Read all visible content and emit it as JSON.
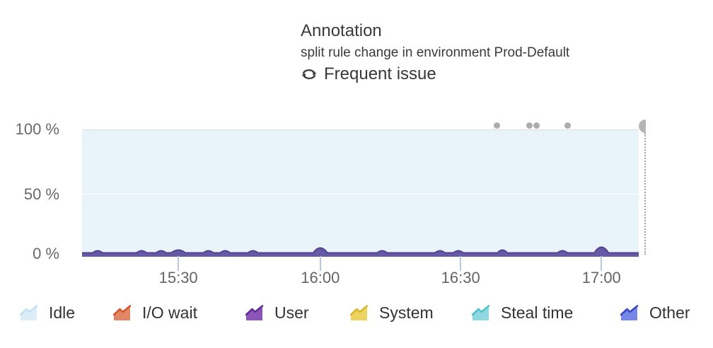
{
  "tooltip": {
    "title": "Annotation",
    "description": "split rule change in environment Prod-Default",
    "frequent_issue": "Frequent issue",
    "icon": "cycle-arrows-icon",
    "text_color": "#3a3a3a"
  },
  "axes": {
    "y_labels": [
      "100 %",
      "50 %",
      "0 %"
    ],
    "x_labels": [
      "15:30",
      "16:00",
      "16:30",
      "17:00"
    ]
  },
  "legend": [
    {
      "label": "Idle",
      "fill": "#dcedf8",
      "stroke": "#c3e0f2"
    },
    {
      "label": "I/O wait",
      "fill": "#e28763",
      "stroke": "#d4562c"
    },
    {
      "label": "User",
      "fill": "#8d55b8",
      "stroke": "#5e2c92"
    },
    {
      "label": "System",
      "fill": "#edd35f",
      "stroke": "#ddb52f"
    },
    {
      "label": "Steal time",
      "fill": "#8fd7e1",
      "stroke": "#52bfd1"
    },
    {
      "label": "Other",
      "fill": "#7787e8",
      "stroke": "#3749c4"
    }
  ],
  "chart_data": {
    "type": "area",
    "stacked": true,
    "title": "",
    "xlabel": "",
    "ylabel": "",
    "ylim": [
      0,
      100
    ],
    "grid": "horizontal-50-only",
    "legend_position": "bottom",
    "x_ticks": [
      {
        "label": "15:30",
        "f": 0.173
      },
      {
        "label": "16:00",
        "f": 0.428
      },
      {
        "label": "16:30",
        "f": 0.68
      },
      {
        "label": "17:00",
        "f": 0.933
      }
    ],
    "y_tick_labels": [
      "100 %",
      "50 %",
      "0 %"
    ],
    "categories": [
      "15:30",
      "16:00",
      "16:30",
      "17:00"
    ],
    "series": [
      {
        "name": "Idle",
        "values": [
          98.0,
          97.0,
          98.0,
          97.0
        ]
      },
      {
        "name": "I/O wait",
        "values": [
          0.2,
          0.3,
          0.2,
          0.3
        ]
      },
      {
        "name": "User",
        "values": [
          0.8,
          0.9,
          0.8,
          0.9
        ]
      },
      {
        "name": "System",
        "values": [
          0.4,
          0.5,
          0.4,
          0.5
        ]
      },
      {
        "name": "Steal time",
        "values": [
          0.3,
          1.5,
          0.2,
          1.8
        ]
      },
      {
        "name": "Other",
        "values": [
          0.3,
          0.5,
          0.4,
          0.5
        ]
      }
    ],
    "annotation_dots": [
      {
        "time": "16:38",
        "f": 0.7446
      },
      {
        "time": "16:45",
        "f": 0.8043
      },
      {
        "time": "16:46",
        "f": 0.817
      },
      {
        "time": "16:53",
        "f": 0.8717
      }
    ],
    "annotation_marker": {
      "time": "17:10",
      "f": 1.012,
      "shape": "half-circle-with-dotted-line"
    },
    "baseline_bumps": [
      {
        "f": 0.028,
        "h": 3
      },
      {
        "f": 0.107,
        "h": 3
      },
      {
        "f": 0.142,
        "h": 3
      },
      {
        "f": 0.173,
        "h": 4,
        "teal": true
      },
      {
        "f": 0.227,
        "h": 3
      },
      {
        "f": 0.257,
        "h": 3
      },
      {
        "f": 0.307,
        "h": 3
      },
      {
        "f": 0.428,
        "h": 7,
        "teal": true
      },
      {
        "f": 0.539,
        "h": 3
      },
      {
        "f": 0.643,
        "h": 3
      },
      {
        "f": 0.676,
        "h": 3
      },
      {
        "f": 0.755,
        "h": 4
      },
      {
        "f": 0.863,
        "h": 3
      },
      {
        "f": 0.933,
        "h": 8,
        "teal": true
      }
    ],
    "colors": {
      "plot_bg": "#e8f3fa",
      "gridline_50": "#f7fbfd",
      "top_border": "#dddddd",
      "band_fill": "#665aa6",
      "band_stroke": "#53418f",
      "steal_bump": "#74cbd8",
      "annotation_dot": "#abaeb1",
      "annotation_marker": "#b5b5b5",
      "tick_line": "#bac7df"
    }
  }
}
